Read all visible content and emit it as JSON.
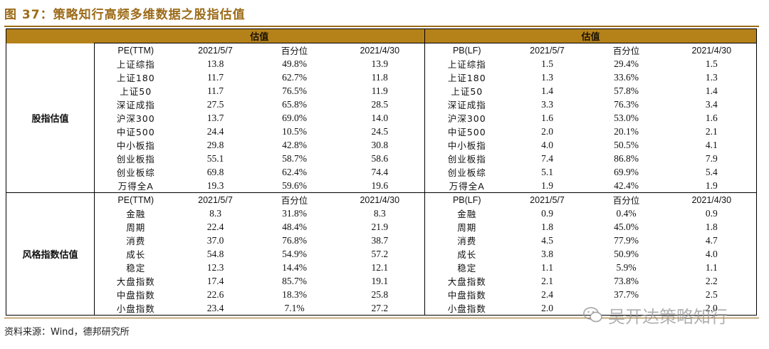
{
  "title": "图 37：策略知行高频多维数据之股指估值",
  "header_band": "估值",
  "sections": [
    {
      "label": "股指估值",
      "pe_header": [
        "PE(TTM)",
        "2021/5/7",
        "百分位",
        "2021/4/30"
      ],
      "pb_header": [
        "PB(LF)",
        "2021/5/7",
        "百分位",
        "2021/4/30"
      ],
      "rows": [
        {
          "name": "上证综指",
          "pe": [
            "13.8",
            "49.8%",
            "13.9"
          ],
          "pb": [
            "1.5",
            "29.4%",
            "1.5"
          ]
        },
        {
          "name": "上证180",
          "pe": [
            "11.7",
            "62.7%",
            "11.8"
          ],
          "pb": [
            "1.3",
            "33.6%",
            "1.3"
          ]
        },
        {
          "name": "上证50",
          "pe": [
            "11.7",
            "76.5%",
            "11.9"
          ],
          "pb": [
            "1.4",
            "57.8%",
            "1.4"
          ]
        },
        {
          "name": "深证成指",
          "pe": [
            "27.5",
            "65.8%",
            "28.5"
          ],
          "pb": [
            "3.3",
            "76.3%",
            "3.4"
          ]
        },
        {
          "name": "沪深300",
          "pe": [
            "13.7",
            "69.0%",
            "14.0"
          ],
          "pb": [
            "1.6",
            "53.0%",
            "1.6"
          ]
        },
        {
          "name": "中证500",
          "pe": [
            "24.4",
            "10.5%",
            "24.5"
          ],
          "pb": [
            "2.0",
            "20.1%",
            "2.1"
          ]
        },
        {
          "name": "中小板指",
          "pe": [
            "29.8",
            "42.8%",
            "30.8"
          ],
          "pb": [
            "4.0",
            "50.5%",
            "4.1"
          ]
        },
        {
          "name": "创业板指",
          "pe": [
            "55.1",
            "58.7%",
            "58.6"
          ],
          "pb": [
            "7.4",
            "86.8%",
            "7.9"
          ]
        },
        {
          "name": "创业板综",
          "pe": [
            "69.8",
            "62.4%",
            "74.4"
          ],
          "pb": [
            "5.1",
            "69.9%",
            "5.4"
          ]
        },
        {
          "name": "万得全A",
          "pe": [
            "19.3",
            "59.6%",
            "19.6"
          ],
          "pb": [
            "1.9",
            "42.4%",
            "1.9"
          ]
        }
      ]
    },
    {
      "label": "风格指数估值",
      "pe_header": [
        "PE(TTM)",
        "2021/5/7",
        "百分位",
        "2021/4/30"
      ],
      "pb_header": [
        "PB(LF)",
        "2021/5/7",
        "百分位",
        "2021/4/30"
      ],
      "rows": [
        {
          "name": "金融",
          "pe": [
            "8.3",
            "31.8%",
            "8.3"
          ],
          "pb": [
            "0.9",
            "0.4%",
            "0.9"
          ]
        },
        {
          "name": "周期",
          "pe": [
            "22.4",
            "48.4%",
            "21.9"
          ],
          "pb": [
            "1.8",
            "45.0%",
            "1.8"
          ]
        },
        {
          "name": "消费",
          "pe": [
            "37.0",
            "76.8%",
            "38.7"
          ],
          "pb": [
            "4.5",
            "77.9%",
            "4.7"
          ]
        },
        {
          "name": "成长",
          "pe": [
            "54.8",
            "54.9%",
            "57.2"
          ],
          "pb": [
            "3.8",
            "50.9%",
            "4.0"
          ]
        },
        {
          "name": "稳定",
          "pe": [
            "12.3",
            "14.4%",
            "12.1"
          ],
          "pb": [
            "1.1",
            "5.9%",
            "1.1"
          ]
        },
        {
          "name": "大盘指数",
          "pe": [
            "17.4",
            "85.7%",
            "19.1"
          ],
          "pb": [
            "2.1",
            "73.8%",
            "2.2"
          ]
        },
        {
          "name": "中盘指数",
          "pe": [
            "22.6",
            "18.3%",
            "25.8"
          ],
          "pb": [
            "2.4",
            "37.7%",
            "2.5"
          ]
        },
        {
          "name": "小盘指数",
          "pe": [
            "23.4",
            "7.1%",
            "27.2"
          ],
          "pb": [
            "2.0",
            "",
            "2.0"
          ]
        }
      ]
    }
  ],
  "source": "资料来源：Wind，德邦研究所",
  "watermark": "吴开达策略知行",
  "watermark_icon": "wechat-icon"
}
